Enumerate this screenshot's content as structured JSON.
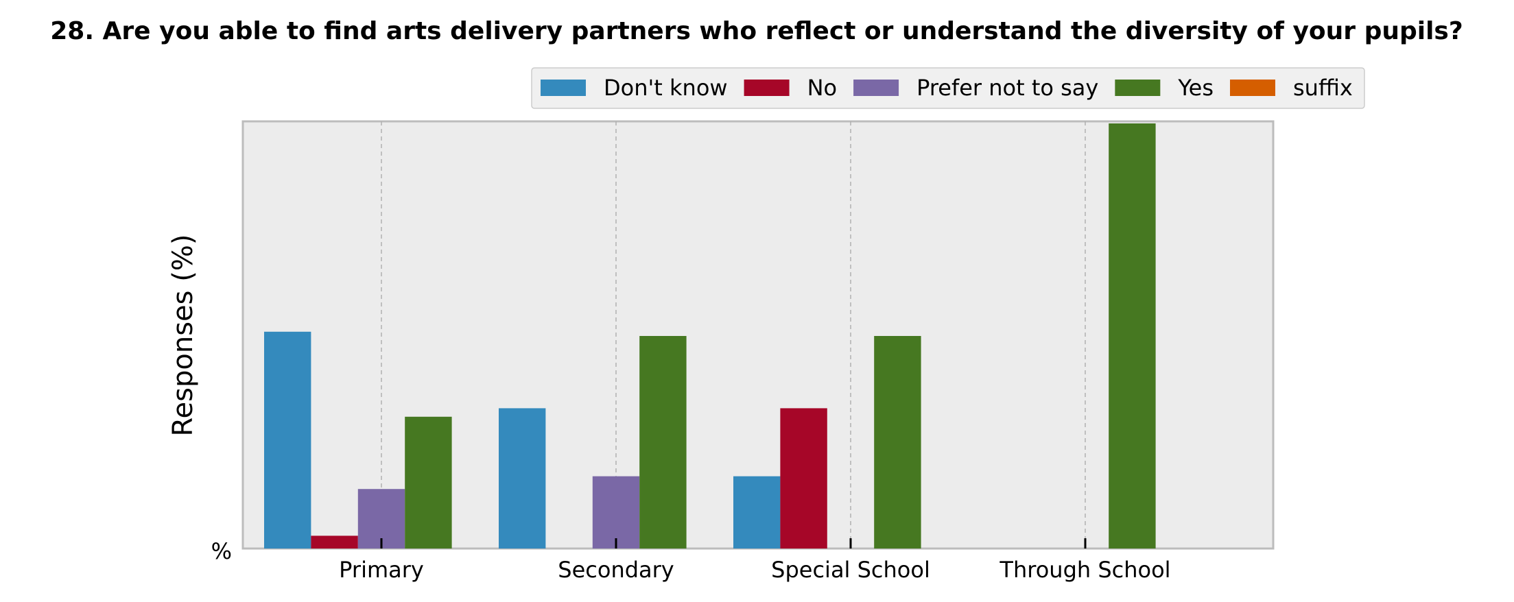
{
  "chart_data": {
    "type": "bar",
    "title": "28. Are you able to find arts delivery partners who reflect or understand the diversity of your pupils?",
    "xlabel": "",
    "ylabel": "Responses (%)",
    "y_tick_label": "%",
    "categories": [
      "Primary",
      "Secondary",
      "Special School",
      "Through School"
    ],
    "series": [
      {
        "name": "Don't know",
        "color": "#348ABD",
        "values": [
          51,
          33,
          17,
          0
        ]
      },
      {
        "name": "No",
        "color": "#A60628",
        "values": [
          3,
          0,
          33,
          0
        ]
      },
      {
        "name": "Prefer not to say",
        "color": "#7A68A6",
        "values": [
          14,
          17,
          0,
          0
        ]
      },
      {
        "name": "Yes",
        "color": "#467821",
        "values": [
          31,
          50,
          50,
          100
        ]
      },
      {
        "name": "suffix",
        "color": "#D55E00",
        "values": [
          0,
          0,
          0,
          0
        ]
      }
    ],
    "ylim": [
      0,
      105
    ],
    "grid": true,
    "legend_position": "top"
  }
}
